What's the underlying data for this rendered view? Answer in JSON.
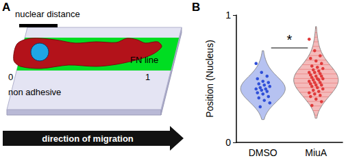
{
  "figure": {
    "panel_labels": [
      "A",
      "B"
    ]
  },
  "diagram": {
    "nuclear_distance_label": "nuclear distance",
    "fn_line_label": "FN line",
    "axis_start": "0",
    "axis_end": "1",
    "substrate_label": "non adhesive",
    "arrow_label": "direction of migration"
  },
  "chart_data": {
    "type": "violin",
    "categories": [
      "DMSO",
      "MiuA"
    ],
    "values": [
      [
        0.62,
        0.55,
        0.52,
        0.5,
        0.48,
        0.47,
        0.46,
        0.45,
        0.44,
        0.43,
        0.42,
        0.42,
        0.41,
        0.4,
        0.39,
        0.38,
        0.36,
        0.35,
        0.33,
        0.31,
        0.28
      ],
      [
        0.81,
        0.72,
        0.68,
        0.66,
        0.64,
        0.62,
        0.6,
        0.59,
        0.58,
        0.57,
        0.56,
        0.55,
        0.55,
        0.54,
        0.53,
        0.52,
        0.52,
        0.51,
        0.5,
        0.5,
        0.49,
        0.49,
        0.48,
        0.47,
        0.47,
        0.46,
        0.45,
        0.45,
        0.44,
        0.43,
        0.42,
        0.41,
        0.4,
        0.39,
        0.38,
        0.37,
        0.36,
        0.34,
        0.32,
        0.29
      ]
    ],
    "colors": [
      "#2f4fd8",
      "#e03a3a"
    ],
    "ylabel": "Position (Nucleus)",
    "ylim": [
      0,
      1
    ],
    "yticks": [
      0,
      1
    ],
    "annotations": [
      {
        "text": "*",
        "between": [
          "DMSO",
          "MiuA"
        ]
      }
    ]
  }
}
